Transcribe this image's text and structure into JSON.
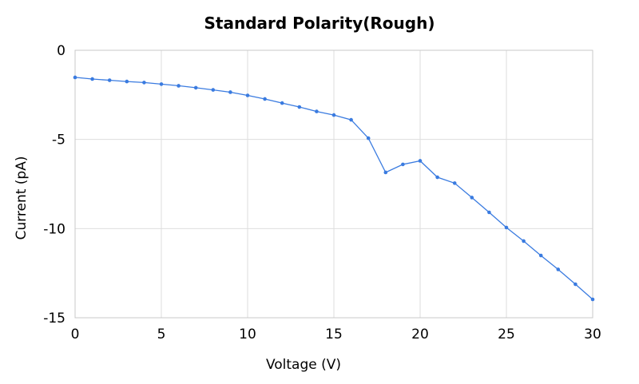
{
  "chart_data": {
    "type": "line",
    "title": "Standard Polarity(Rough)",
    "xlabel": "Voltage (V)",
    "ylabel": "Current (pA)",
    "xlim": [
      0,
      30
    ],
    "ylim": [
      -15,
      0
    ],
    "xticks": [
      0,
      5,
      10,
      15,
      20,
      25,
      30
    ],
    "yticks": [
      0,
      -5,
      -10,
      -15
    ],
    "xtick_labels": [
      "0",
      "5",
      "10",
      "15",
      "20",
      "25",
      "30"
    ],
    "ytick_labels": [
      "0",
      "-5",
      "-10",
      "-15"
    ],
    "grid": true,
    "legend": "none",
    "color": "#3a7be0",
    "series": [
      {
        "x": [
          0,
          1,
          2,
          3,
          4,
          5,
          6,
          7,
          8,
          9,
          10,
          11,
          12,
          13,
          14,
          15,
          16,
          17,
          18,
          19,
          20,
          21,
          22,
          23,
          24,
          25,
          26,
          27,
          28,
          29,
          30
        ],
        "y": [
          -1.52,
          -1.61,
          -1.68,
          -1.75,
          -1.81,
          -1.9,
          -1.99,
          -2.1,
          -2.22,
          -2.35,
          -2.53,
          -2.73,
          -2.96,
          -3.18,
          -3.43,
          -3.63,
          -3.9,
          -4.93,
          -6.85,
          -6.4,
          -6.2,
          -7.12,
          -7.45,
          -8.26,
          -9.09,
          -9.94,
          -10.7,
          -11.51,
          -12.29,
          -13.12,
          -13.97
        ]
      }
    ]
  }
}
